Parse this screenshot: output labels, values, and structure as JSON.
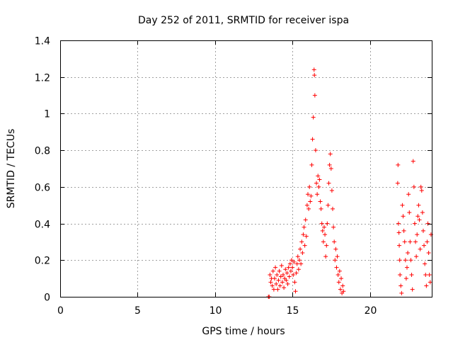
{
  "chart_data": {
    "type": "scatter",
    "title": "Day 252 of 2011, SRMTID for receiver ispa",
    "xlabel": "GPS time / hours",
    "ylabel": "SRMTID / TECUs",
    "xlim": [
      0,
      24
    ],
    "ylim": [
      0,
      1.4
    ],
    "xticks": [
      0,
      5,
      10,
      15,
      20
    ],
    "xtick_labels": [
      "0",
      "5",
      "10",
      "15",
      "20"
    ],
    "yticks": [
      0,
      0.2,
      0.4,
      0.6,
      0.8,
      1,
      1.2,
      1.4
    ],
    "ytick_labels": [
      "0",
      "0.2",
      "0.4",
      "0.6",
      "0.8",
      "1",
      "1.2",
      "1.4"
    ],
    "grid": true,
    "marker": "plus",
    "color": "#ff0000",
    "series": [
      {
        "name": "SRMTID",
        "points": [
          [
            13.45,
            0.0
          ],
          [
            13.5,
            0.0
          ],
          [
            13.55,
            0.12
          ],
          [
            13.6,
            0.08
          ],
          [
            13.65,
            0.1
          ],
          [
            13.7,
            0.06
          ],
          [
            13.75,
            0.14
          ],
          [
            13.8,
            0.04
          ],
          [
            13.85,
            0.1
          ],
          [
            13.9,
            0.16
          ],
          [
            13.95,
            0.07
          ],
          [
            14.0,
            0.12
          ],
          [
            14.05,
            0.04
          ],
          [
            14.1,
            0.09
          ],
          [
            14.15,
            0.14
          ],
          [
            14.2,
            0.06
          ],
          [
            14.25,
            0.11
          ],
          [
            14.3,
            0.17
          ],
          [
            14.35,
            0.08
          ],
          [
            14.4,
            0.12
          ],
          [
            14.45,
            0.05
          ],
          [
            14.5,
            0.1
          ],
          [
            14.55,
            0.15
          ],
          [
            14.6,
            0.09
          ],
          [
            14.65,
            0.13
          ],
          [
            14.7,
            0.07
          ],
          [
            14.75,
            0.16
          ],
          [
            14.8,
            0.11
          ],
          [
            14.85,
            0.18
          ],
          [
            14.9,
            0.14
          ],
          [
            14.95,
            0.2
          ],
          [
            15.0,
            0.16
          ],
          [
            15.05,
            0.12
          ],
          [
            15.1,
            0.19
          ],
          [
            15.15,
            0.08
          ],
          [
            15.2,
            0.03
          ],
          [
            15.25,
            0.13
          ],
          [
            15.3,
            0.18
          ],
          [
            15.35,
            0.22
          ],
          [
            15.4,
            0.15
          ],
          [
            15.45,
            0.2
          ],
          [
            15.5,
            0.26
          ],
          [
            15.55,
            0.18
          ],
          [
            15.6,
            0.3
          ],
          [
            15.65,
            0.24
          ],
          [
            15.7,
            0.34
          ],
          [
            15.75,
            0.38
          ],
          [
            15.8,
            0.28
          ],
          [
            15.85,
            0.42
          ],
          [
            15.9,
            0.33
          ],
          [
            15.95,
            0.5
          ],
          [
            16.0,
            0.56
          ],
          [
            16.05,
            0.48
          ],
          [
            16.1,
            0.6
          ],
          [
            16.15,
            0.52
          ],
          [
            16.2,
            0.55
          ],
          [
            16.25,
            0.72
          ],
          [
            16.3,
            0.86
          ],
          [
            16.35,
            0.98
          ],
          [
            16.4,
            1.24
          ],
          [
            16.42,
            1.21
          ],
          [
            16.45,
            1.1
          ],
          [
            16.5,
            0.8
          ],
          [
            16.55,
            0.62
          ],
          [
            16.6,
            0.56
          ],
          [
            16.65,
            0.66
          ],
          [
            16.7,
            0.6
          ],
          [
            16.75,
            0.64
          ],
          [
            16.8,
            0.52
          ],
          [
            16.85,
            0.48
          ],
          [
            16.9,
            0.4
          ],
          [
            16.95,
            0.36
          ],
          [
            17.0,
            0.3
          ],
          [
            17.05,
            0.38
          ],
          [
            17.1,
            0.34
          ],
          [
            17.15,
            0.22
          ],
          [
            17.2,
            0.28
          ],
          [
            17.25,
            0.4
          ],
          [
            17.3,
            0.5
          ],
          [
            17.35,
            0.62
          ],
          [
            17.4,
            0.72
          ],
          [
            17.45,
            0.78
          ],
          [
            17.5,
            0.7
          ],
          [
            17.55,
            0.58
          ],
          [
            17.6,
            0.48
          ],
          [
            17.65,
            0.38
          ],
          [
            17.7,
            0.3
          ],
          [
            17.75,
            0.2
          ],
          [
            17.8,
            0.26
          ],
          [
            17.85,
            0.16
          ],
          [
            17.9,
            0.22
          ],
          [
            17.95,
            0.12
          ],
          [
            18.0,
            0.08
          ],
          [
            18.05,
            0.14
          ],
          [
            18.1,
            0.04
          ],
          [
            18.15,
            0.1
          ],
          [
            18.2,
            0.02
          ],
          [
            18.25,
            0.06
          ],
          [
            18.3,
            0.03
          ],
          [
            21.8,
            0.62
          ],
          [
            21.82,
            0.72
          ],
          [
            21.85,
            0.4
          ],
          [
            21.88,
            0.35
          ],
          [
            21.9,
            0.28
          ],
          [
            21.93,
            0.2
          ],
          [
            21.95,
            0.12
          ],
          [
            22.0,
            0.06
          ],
          [
            22.05,
            0.02
          ],
          [
            22.1,
            0.5
          ],
          [
            22.15,
            0.44
          ],
          [
            22.2,
            0.36
          ],
          [
            22.25,
            0.3
          ],
          [
            22.3,
            0.2
          ],
          [
            22.35,
            0.1
          ],
          [
            22.4,
            0.16
          ],
          [
            22.45,
            0.24
          ],
          [
            22.5,
            0.56
          ],
          [
            22.55,
            0.46
          ],
          [
            22.6,
            0.3
          ],
          [
            22.65,
            0.2
          ],
          [
            22.7,
            0.12
          ],
          [
            22.75,
            0.04
          ],
          [
            22.8,
            0.74
          ],
          [
            22.85,
            0.6
          ],
          [
            22.9,
            0.4
          ],
          [
            22.95,
            0.3
          ],
          [
            23.0,
            0.22
          ],
          [
            23.05,
            0.34
          ],
          [
            23.1,
            0.44
          ],
          [
            23.15,
            0.5
          ],
          [
            23.2,
            0.42
          ],
          [
            23.25,
            0.26
          ],
          [
            23.3,
            0.6
          ],
          [
            23.35,
            0.58
          ],
          [
            23.4,
            0.46
          ],
          [
            23.45,
            0.36
          ],
          [
            23.5,
            0.28
          ],
          [
            23.55,
            0.18
          ],
          [
            23.6,
            0.12
          ],
          [
            23.65,
            0.06
          ],
          [
            23.7,
            0.3
          ],
          [
            23.75,
            0.4
          ],
          [
            23.8,
            0.24
          ],
          [
            23.85,
            0.12
          ],
          [
            23.9,
            0.08
          ],
          [
            23.95,
            0.34
          ]
        ]
      }
    ]
  }
}
